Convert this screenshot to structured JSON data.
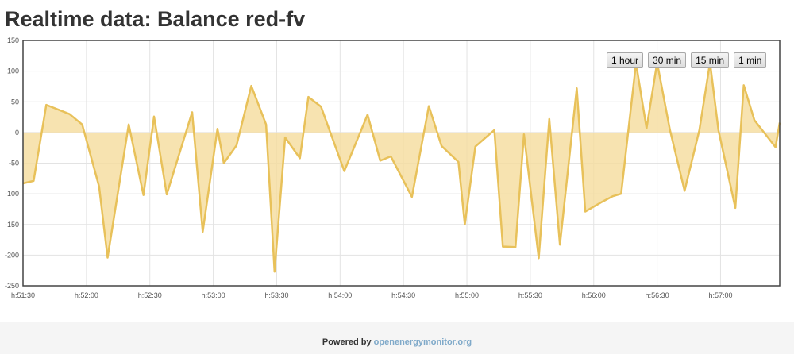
{
  "page": {
    "title": "Realtime data: Balance red-fv"
  },
  "range_buttons": [
    "1 hour",
    "30 min",
    "15 min",
    "1 min"
  ],
  "footer": {
    "prefix": "Powered by",
    "link_text": "openenergymonitor.org"
  },
  "colors": {
    "line": "#e8c15a",
    "fill": "#f5dc9c",
    "grid": "#e3e3e3",
    "axis": "#444444"
  },
  "chart_data": {
    "type": "area",
    "title": "",
    "xlabel": "",
    "ylabel": "",
    "grid": true,
    "ylim": [
      -250,
      150
    ],
    "yticks": [
      150,
      100,
      50,
      0,
      -50,
      -100,
      -150,
      -200,
      -250
    ],
    "x_unit": "seconds after h:51:30",
    "xlim": [
      0,
      358
    ],
    "xticks": [
      {
        "t": 0,
        "label": "h:51:30"
      },
      {
        "t": 30,
        "label": "h:52:00"
      },
      {
        "t": 60,
        "label": "h:52:30"
      },
      {
        "t": 90,
        "label": "h:53:00"
      },
      {
        "t": 120,
        "label": "h:53:30"
      },
      {
        "t": 150,
        "label": "h:54:00"
      },
      {
        "t": 180,
        "label": "h:54:30"
      },
      {
        "t": 210,
        "label": "h:55:00"
      },
      {
        "t": 240,
        "label": "h:55:30"
      },
      {
        "t": 270,
        "label": "h:56:00"
      },
      {
        "t": 300,
        "label": "h:56:30"
      },
      {
        "t": 330,
        "label": "h:57:00"
      }
    ],
    "series": [
      {
        "points": [
          [
            0,
            -83
          ],
          [
            5,
            -79
          ],
          [
            11,
            45
          ],
          [
            22,
            30
          ],
          [
            28,
            13
          ],
          [
            36,
            -88
          ],
          [
            40,
            -204
          ],
          [
            50,
            13
          ],
          [
            57,
            -102
          ],
          [
            62,
            26
          ],
          [
            68,
            -101
          ],
          [
            80,
            33
          ],
          [
            85,
            -162
          ],
          [
            92,
            6
          ],
          [
            95,
            -50
          ],
          [
            101,
            -21
          ],
          [
            108,
            76
          ],
          [
            115,
            13
          ],
          [
            119,
            -227
          ],
          [
            124,
            -8
          ],
          [
            131,
            -42
          ],
          [
            135,
            58
          ],
          [
            141,
            42
          ],
          [
            152,
            -63
          ],
          [
            163,
            29
          ],
          [
            169,
            -46
          ],
          [
            174,
            -39
          ],
          [
            184,
            -105
          ],
          [
            192,
            43
          ],
          [
            198,
            -22
          ],
          [
            206,
            -48
          ],
          [
            209,
            -150
          ],
          [
            214,
            -23
          ],
          [
            223,
            4
          ],
          [
            227,
            -186
          ],
          [
            233,
            -187
          ],
          [
            237,
            -3
          ],
          [
            244,
            -205
          ],
          [
            249,
            22
          ],
          [
            254,
            -183
          ],
          [
            262,
            72
          ],
          [
            266,
            -129
          ],
          [
            274,
            -113
          ],
          [
            279,
            -104
          ],
          [
            283,
            -100
          ],
          [
            290,
            113
          ],
          [
            295,
            7
          ],
          [
            300,
            114
          ],
          [
            306,
            5
          ],
          [
            313,
            -95
          ],
          [
            320,
            4
          ],
          [
            325,
            114
          ],
          [
            329,
            4
          ],
          [
            337,
            -123
          ],
          [
            341,
            77
          ],
          [
            346,
            20
          ],
          [
            356,
            -24
          ],
          [
            358,
            16
          ]
        ]
      }
    ]
  }
}
